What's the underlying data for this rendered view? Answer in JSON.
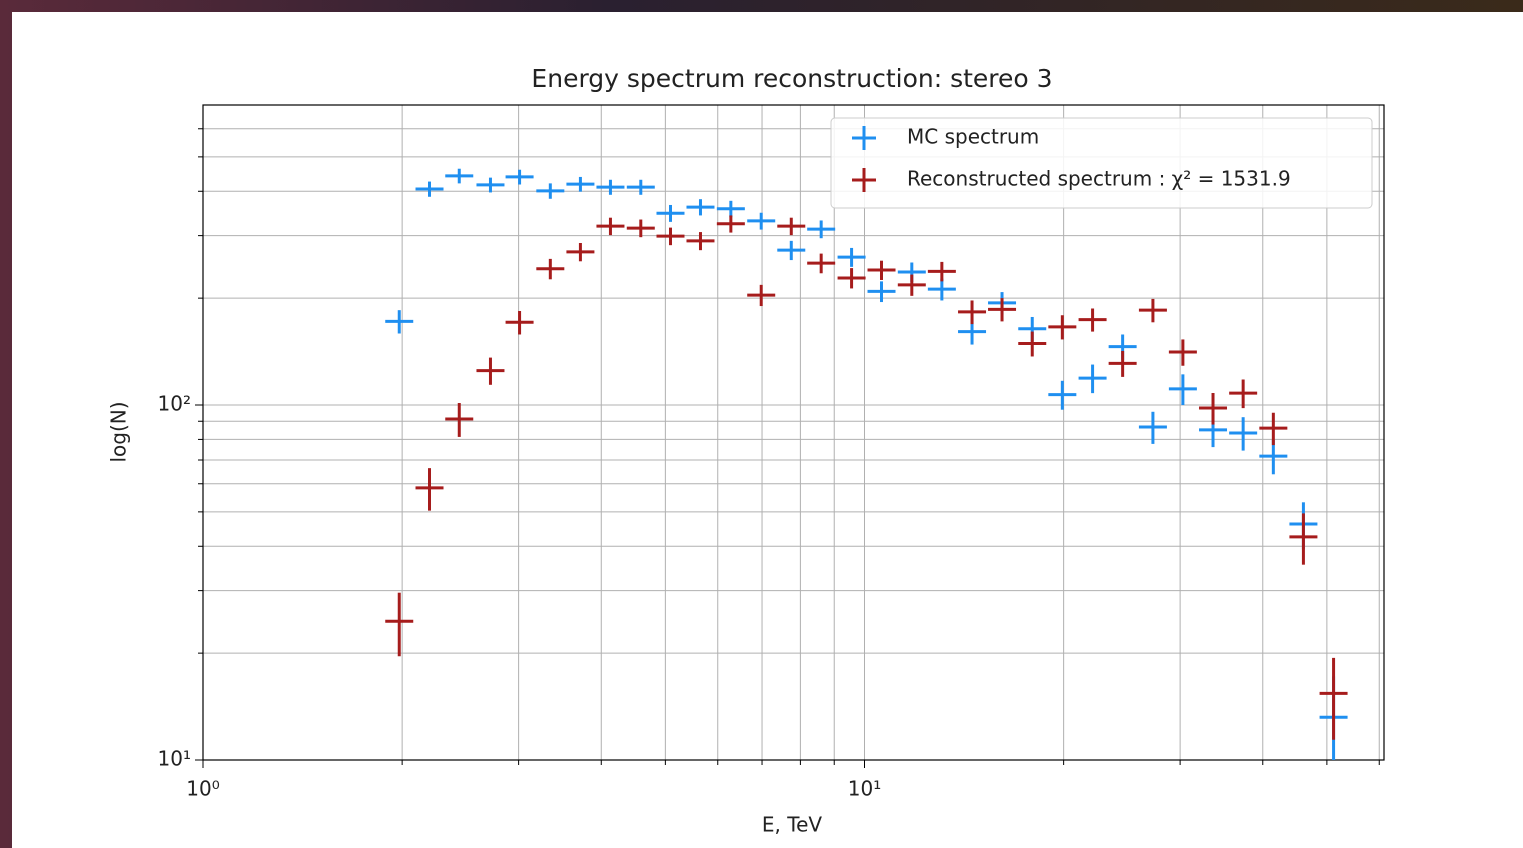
{
  "chart_data": {
    "type": "errorbar",
    "title": "Energy spectrum reconstruction: stereo 3",
    "x_label": "E, TeV",
    "y_label": "log(N)",
    "x_scale": "log",
    "y_scale": "log",
    "grid": true,
    "legend_position": "upper right",
    "x": [
      1.98,
      2.2,
      2.44,
      2.72,
      3.01,
      3.35,
      3.72,
      4.13,
      4.59,
      5.09,
      5.65,
      6.28,
      6.98,
      7.75,
      8.6,
      9.56,
      10.61,
      11.79,
      13.09,
      14.54,
      16.14,
      17.93,
      19.91,
      22.12,
      24.56,
      27.29,
      30.29,
      33.64,
      37.36,
      41.5,
      46.08,
      51.18
    ],
    "series": [
      {
        "name": "MC spectrum",
        "color": "#1f8ff0",
        "values": [
          172,
          406,
          442,
          417,
          439,
          401,
          419,
          411,
          411,
          347,
          361,
          357,
          330,
          273,
          313,
          261,
          209,
          237,
          212,
          161,
          194,
          164,
          107,
          119,
          146,
          86.7,
          111,
          85.1,
          83.4,
          71.8,
          46.2,
          13.2
        ],
        "yerr": [
          13,
          20,
          21,
          20,
          21,
          20,
          20,
          20,
          20,
          19,
          19,
          19,
          18,
          17,
          18,
          16,
          14,
          15,
          15,
          13,
          14,
          13,
          10,
          11,
          12,
          9,
          11,
          9,
          9,
          8,
          7,
          4
        ]
      },
      {
        "name": "Reconstructed spectrum : χ² = 1531.9",
        "color": "#a61c1c",
        "values": [
          24.6,
          58.4,
          91.3,
          125,
          171,
          242,
          270,
          319,
          315,
          299,
          290,
          324,
          204,
          319,
          251,
          228,
          240,
          218,
          238,
          183,
          186,
          149,
          166,
          174,
          131,
          185,
          141,
          98.1,
          108,
          86.1,
          42.5,
          15.4
        ],
        "yerr": [
          5,
          8,
          10,
          11,
          13,
          16,
          16,
          18,
          18,
          17,
          17,
          18,
          14,
          18,
          16,
          15,
          15,
          15,
          15,
          14,
          14,
          12,
          13,
          13,
          11,
          14,
          12,
          10,
          10,
          9,
          7,
          4
        ]
      }
    ],
    "xlim": [
      1,
      61
    ],
    "ylim": [
      10,
      700
    ],
    "xticks": [
      {
        "value": 1,
        "label": "10⁰"
      },
      {
        "value": 10,
        "label": "10¹"
      }
    ],
    "xminor": [
      2,
      3,
      4,
      5,
      6,
      7,
      8,
      9,
      20,
      30,
      40,
      50,
      60
    ],
    "yticks": [
      {
        "value": 10,
        "label": "10¹"
      },
      {
        "value": 100,
        "label": "10²"
      }
    ],
    "yminor": [
      20,
      30,
      40,
      50,
      60,
      70,
      80,
      90,
      200,
      300,
      400,
      500,
      600
    ]
  }
}
